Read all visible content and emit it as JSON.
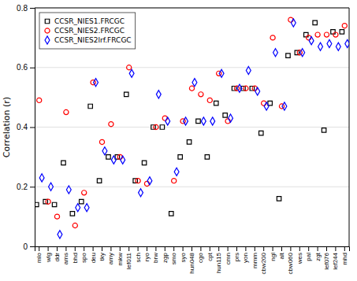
{
  "chart_data": {
    "type": "scatter",
    "ylabel": "Correlation (r)",
    "categories": [
      "mlo",
      "wlg",
      "ddr",
      "ams",
      "bhd",
      "spo",
      "deu",
      "tky",
      "amy",
      "mkw",
      "lef011",
      "sch",
      "ryo",
      "brw",
      "zgp",
      "smo",
      "syo",
      "hun048",
      "cgo",
      "cpt",
      "hun115",
      "cmn",
      "prs",
      "yon",
      "mmm",
      "cbw200",
      "ngl",
      "alt",
      "cbw060",
      "wes",
      "pal",
      "zgt",
      "lef076",
      "lef244",
      "mhd"
    ],
    "series": [
      {
        "name": "CCSR_NIES1.FRCGC",
        "color": "black",
        "marker": "square",
        "values": [
          0.14,
          0.15,
          0.14,
          0.28,
          0.11,
          0.15,
          0.47,
          0.22,
          0.3,
          0.3,
          0.51,
          0.22,
          0.28,
          0.4,
          0.4,
          0.11,
          0.3,
          0.35,
          0.42,
          0.3,
          0.48,
          0.44,
          0.53,
          0.53,
          0.53,
          0.38,
          0.48,
          0.16,
          0.64,
          0.65,
          0.71,
          0.75,
          0.39,
          0.72,
          0.72
        ]
      },
      {
        "name": "CCSR_NIES2.FRCGC",
        "color": "red",
        "marker": "circle",
        "values": [
          0.49,
          0.15,
          0.1,
          0.45,
          0.07,
          0.18,
          0.55,
          0.35,
          0.41,
          0.3,
          0.6,
          0.22,
          0.21,
          0.4,
          0.43,
          0.22,
          0.42,
          0.53,
          0.51,
          0.49,
          0.58,
          0.42,
          0.53,
          0.53,
          0.53,
          0.48,
          0.7,
          0.47,
          0.76,
          0.65,
          0.7,
          0.71,
          0.71,
          0.71,
          0.74
        ]
      },
      {
        "name": "CCSR_NIES2lrf.FRCGC",
        "color": "blue",
        "marker": "diamond",
        "values": [
          0.23,
          0.2,
          0.04,
          0.19,
          0.13,
          0.13,
          0.55,
          0.32,
          0.29,
          0.29,
          0.58,
          0.18,
          0.22,
          0.51,
          0.42,
          0.25,
          0.42,
          0.55,
          0.42,
          0.42,
          0.58,
          0.43,
          0.53,
          0.59,
          0.52,
          0.47,
          0.65,
          0.47,
          0.75,
          0.65,
          0.69,
          0.67,
          0.68,
          0.67,
          0.68
        ]
      }
    ],
    "ylim": [
      0,
      0.8
    ],
    "yticks": [
      0,
      0.2,
      0.4,
      0.6,
      0.8
    ],
    "grid": true,
    "legend": "upper left"
  }
}
